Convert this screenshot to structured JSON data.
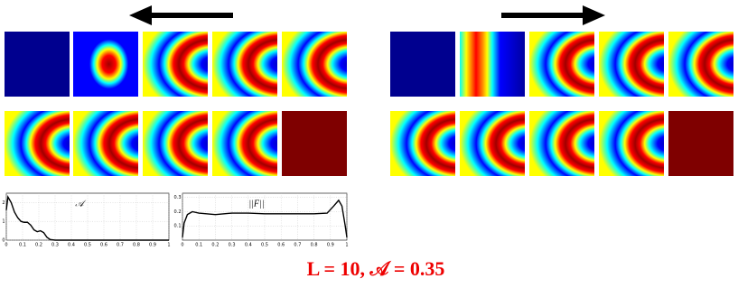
{
  "chart_data": [
    {
      "type": "line",
      "title": "𝒜",
      "color": "#000000",
      "grid": true,
      "x": [
        0,
        0.01,
        0.03,
        0.05,
        0.07,
        0.09,
        0.11,
        0.13,
        0.15,
        0.17,
        0.19,
        0.21,
        0.23,
        0.25,
        0.27,
        0.3,
        0.4,
        0.5,
        0.6,
        0.7,
        0.8,
        0.9,
        1
      ],
      "values": [
        1.6,
        2.3,
        2.0,
        1.5,
        1.2,
        1.0,
        0.95,
        0.95,
        0.8,
        0.55,
        0.45,
        0.5,
        0.4,
        0.15,
        0.03,
        0,
        0,
        0,
        0,
        0,
        0,
        0,
        0
      ],
      "xlim": [
        0,
        1
      ],
      "ylim": [
        0,
        2.5
      ],
      "xticks": [
        0,
        0.1,
        0.2,
        0.3,
        0.4,
        0.5,
        0.6,
        0.7,
        0.8,
        0.9,
        1
      ],
      "yticks": [
        0,
        1,
        2
      ]
    },
    {
      "type": "line",
      "title": "||F||",
      "color": "#000000",
      "grid": true,
      "x": [
        0,
        0.01,
        0.03,
        0.06,
        0.1,
        0.2,
        0.3,
        0.4,
        0.5,
        0.6,
        0.7,
        0.8,
        0.88,
        0.92,
        0.95,
        0.97,
        0.99,
        1
      ],
      "values": [
        0.02,
        0.12,
        0.18,
        0.2,
        0.19,
        0.18,
        0.19,
        0.19,
        0.185,
        0.185,
        0.185,
        0.185,
        0.19,
        0.24,
        0.28,
        0.24,
        0.1,
        0.02
      ],
      "xlim": [
        0,
        1
      ],
      "ylim": [
        0,
        0.33
      ],
      "xticks": [
        0,
        0.1,
        0.2,
        0.3,
        0.4,
        0.5,
        0.6,
        0.7,
        0.8,
        0.9,
        1
      ],
      "yticks": [
        0.1,
        0.2,
        0.3
      ]
    }
  ],
  "caption": "L = 10, 𝒜 = 0.35"
}
